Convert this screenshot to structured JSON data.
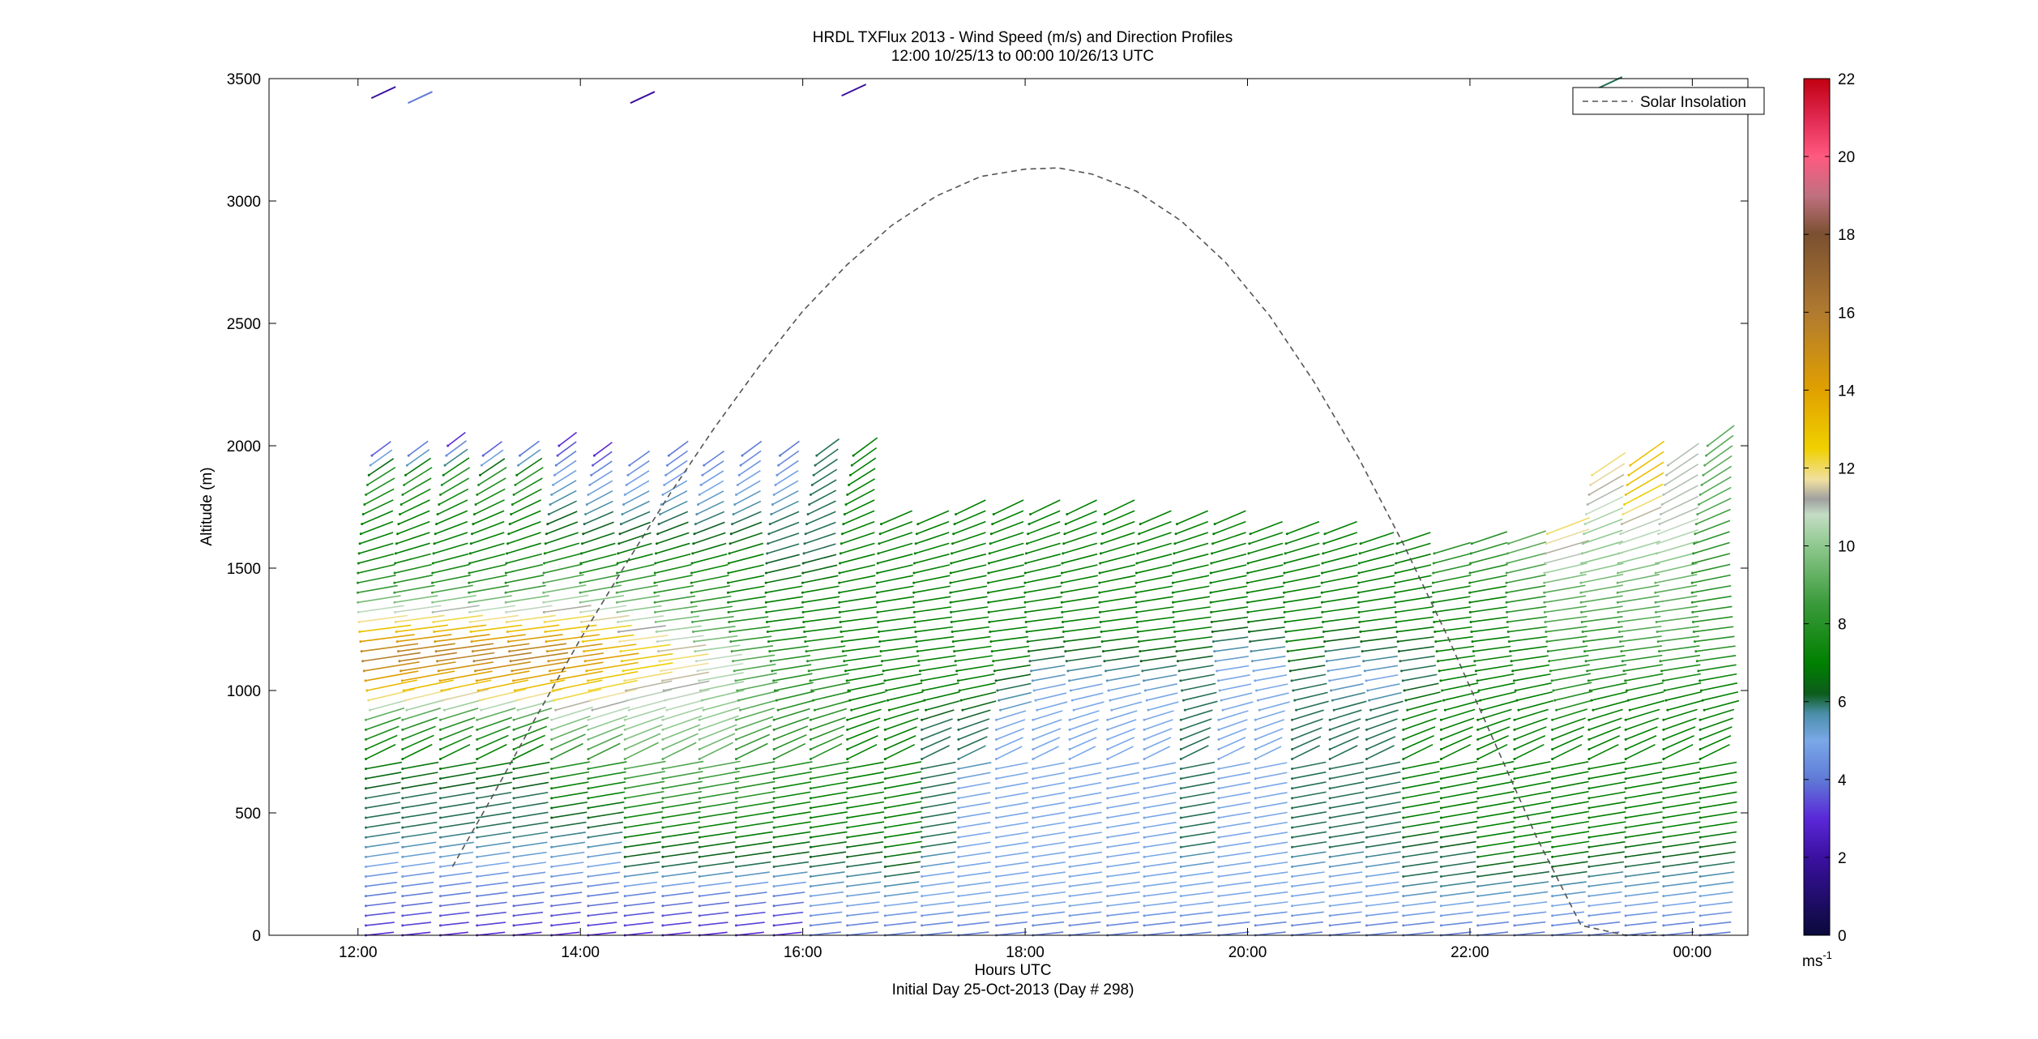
{
  "chart_data": {
    "type": "scatter",
    "title": "HRDL TXFlux 2013 - Wind Speed (m/s) and Direction Profiles",
    "subtitle": "12:00 10/25/13 to 00:00 10/26/13  UTC",
    "xlabel": "Hours UTC",
    "xlabel2": "Initial Day 25-Oct-2013 (Day # 298)",
    "ylabel": "Altitude (m)",
    "xlim": [
      11.2,
      24.5
    ],
    "ylim": [
      0,
      3500
    ],
    "x_ticks": [
      12,
      14,
      16,
      18,
      20,
      22,
      24
    ],
    "x_tick_labels": [
      "12:00",
      "14:00",
      "16:00",
      "18:00",
      "20:00",
      "22:00",
      "00:00"
    ],
    "y_ticks": [
      0,
      500,
      1000,
      1500,
      2000,
      2500,
      3000,
      3500
    ],
    "y_tick_labels": [
      "0",
      "500",
      "1000",
      "1500",
      "2000",
      "2500",
      "3000",
      "3500"
    ],
    "legend": {
      "label": "Solar Insolation",
      "placement": "top-right"
    },
    "series": [
      {
        "name": "Solar Insolation",
        "style": "dashed",
        "color": "#555555",
        "x": [
          12.85,
          13.2,
          13.6,
          14.0,
          14.4,
          14.8,
          15.2,
          15.6,
          16.0,
          16.4,
          16.8,
          17.2,
          17.6,
          18.0,
          18.3,
          18.6,
          19.0,
          19.4,
          19.8,
          20.2,
          20.6,
          21.0,
          21.4,
          21.8,
          22.2,
          22.6,
          23.0,
          23.4,
          23.75
        ],
        "y": [
          280,
          560,
          890,
          1210,
          1510,
          1800,
          2070,
          2320,
          2550,
          2740,
          2900,
          3020,
          3100,
          3130,
          3135,
          3110,
          3040,
          2920,
          2750,
          2530,
          2260,
          1950,
          1600,
          1220,
          810,
          400,
          40,
          0,
          0
        ]
      }
    ],
    "profile_times": [
      12.1,
      12.43,
      12.77,
      13.1,
      13.43,
      13.77,
      14.1,
      14.43,
      14.77,
      15.1,
      15.43,
      15.77,
      16.1,
      16.43,
      16.77,
      17.1,
      17.43,
      17.77,
      18.1,
      18.43,
      18.77,
      19.1,
      19.43,
      19.77,
      20.1,
      20.43,
      20.77,
      21.1,
      21.43,
      21.77,
      22.1,
      22.43,
      22.77,
      23.1,
      23.43,
      23.77,
      24.1
    ],
    "profile_tops": [
      1980,
      1990,
      2000,
      1980,
      1990,
      2000,
      1960,
      1950,
      1960,
      1940,
      1960,
      1960,
      1970,
      1960,
      1700,
      1700,
      1730,
      1750,
      1740,
      1730,
      1720,
      1700,
      1710,
      1690,
      1670,
      1650,
      1640,
      1610,
      1600,
      1580,
      1610,
      1620,
      1640,
      1890,
      1930,
      1940,
      2020
    ],
    "profile_speeds_ms": [
      [
        3,
        4,
        5,
        6,
        6,
        7,
        8,
        13,
        16,
        12,
        8,
        7,
        7,
        8,
        3
      ],
      [
        3,
        4,
        5,
        6,
        6,
        7,
        8,
        13,
        16,
        12,
        8,
        7,
        7,
        8,
        3
      ],
      [
        3,
        4,
        5,
        6,
        6,
        7,
        8,
        13,
        16,
        12,
        8,
        7,
        7,
        8,
        3
      ],
      [
        3,
        4,
        5,
        6,
        6,
        7,
        8,
        13,
        16,
        12,
        8,
        7,
        7,
        8,
        3
      ],
      [
        3,
        4,
        5,
        6,
        6,
        7,
        8,
        13,
        16,
        12,
        8,
        7,
        7,
        8,
        3
      ],
      [
        3,
        4,
        5,
        6,
        7,
        8,
        10,
        13,
        15,
        12,
        9,
        7,
        6,
        5,
        3
      ],
      [
        3,
        4,
        5,
        6,
        7,
        8,
        10,
        12,
        14,
        12,
        9,
        7,
        6,
        5,
        3
      ],
      [
        3,
        4,
        6,
        7,
        8,
        9,
        10,
        11,
        13,
        11,
        9,
        7,
        6,
        5,
        4
      ],
      [
        3,
        4,
        6,
        7,
        8,
        9,
        10,
        11,
        12,
        10,
        8,
        7,
        6,
        5,
        4
      ],
      [
        3,
        4,
        6,
        7,
        8,
        9,
        10,
        10,
        11,
        9,
        8,
        7,
        6,
        5,
        4
      ],
      [
        3,
        4,
        6,
        7,
        8,
        8,
        9,
        9,
        9,
        8,
        7,
        7,
        6,
        5,
        4
      ],
      [
        3,
        4,
        6,
        7,
        7,
        8,
        8,
        8,
        8,
        7,
        7,
        6,
        6,
        5,
        4
      ],
      [
        4,
        5,
        6,
        7,
        7,
        8,
        8,
        8,
        8,
        7,
        7,
        6,
        6,
        6,
        6
      ],
      [
        4,
        5,
        6,
        7,
        7,
        7,
        7,
        7,
        7,
        7,
        7,
        7,
        7,
        7,
        7
      ],
      [
        4,
        5,
        6,
        7,
        7,
        7,
        7,
        7,
        7,
        7,
        7,
        7,
        7,
        7,
        7
      ],
      [
        4,
        5,
        5,
        6,
        6,
        6,
        6,
        6,
        7,
        7,
        7,
        7,
        7,
        7,
        7
      ],
      [
        4,
        5,
        5,
        5,
        5,
        5,
        6,
        6,
        7,
        7,
        7,
        7,
        7,
        7,
        7
      ],
      [
        4,
        5,
        5,
        5,
        5,
        5,
        5,
        5,
        6,
        7,
        7,
        7,
        7,
        7,
        7
      ],
      [
        4,
        5,
        5,
        5,
        5,
        5,
        5,
        5,
        5,
        6,
        7,
        7,
        7,
        7,
        7
      ],
      [
        4,
        5,
        5,
        5,
        5,
        5,
        5,
        5,
        5,
        6,
        7,
        7,
        7,
        7,
        7
      ],
      [
        4,
        5,
        5,
        5,
        5,
        5,
        5,
        5,
        5,
        6,
        7,
        7,
        7,
        7,
        7
      ],
      [
        4,
        5,
        5,
        5,
        5,
        5,
        5,
        5,
        5,
        6,
        7,
        7,
        7,
        7,
        7
      ],
      [
        4,
        5,
        5,
        6,
        6,
        6,
        6,
        6,
        6,
        6,
        7,
        7,
        7,
        7,
        7
      ],
      [
        4,
        5,
        5,
        5,
        5,
        5,
        5,
        5,
        5,
        5,
        6,
        7,
        7,
        7,
        7
      ],
      [
        4,
        5,
        5,
        5,
        5,
        5,
        5,
        5,
        5,
        5,
        6,
        7,
        7,
        7,
        7
      ],
      [
        4,
        5,
        5,
        6,
        6,
        6,
        6,
        6,
        6,
        6,
        7,
        7,
        7,
        7,
        7
      ],
      [
        4,
        5,
        5,
        6,
        6,
        6,
        6,
        6,
        6,
        5,
        6,
        7,
        7,
        7,
        7
      ],
      [
        4,
        5,
        5,
        6,
        6,
        6,
        6,
        6,
        6,
        5,
        6,
        7,
        7,
        7,
        7
      ],
      [
        4,
        5,
        6,
        6,
        7,
        7,
        7,
        7,
        7,
        6,
        6,
        7,
        7,
        7,
        7
      ],
      [
        4,
        5,
        6,
        6,
        7,
        7,
        7,
        7,
        7,
        7,
        7,
        7,
        7,
        8,
        8
      ],
      [
        4,
        5,
        6,
        7,
        7,
        7,
        7,
        7,
        7,
        7,
        7,
        7,
        7,
        8,
        8
      ],
      [
        4,
        5,
        6,
        7,
        7,
        7,
        7,
        7,
        7,
        7,
        7,
        8,
        8,
        9,
        9
      ],
      [
        4,
        5,
        6,
        7,
        7,
        7,
        7,
        7,
        8,
        8,
        8,
        9,
        9,
        11,
        12
      ],
      [
        4,
        5,
        6,
        7,
        7,
        7,
        7,
        7,
        8,
        8,
        9,
        10,
        10,
        11,
        12
      ],
      [
        4,
        5,
        6,
        7,
        7,
        7,
        7,
        7,
        8,
        9,
        9,
        10,
        11,
        13,
        13
      ],
      [
        4,
        5,
        6,
        7,
        7,
        7,
        7,
        7,
        8,
        9,
        9,
        10,
        11,
        11,
        11
      ],
      [
        4,
        5,
        6,
        7,
        7,
        7,
        7,
        7,
        8,
        8,
        8,
        8,
        9,
        9,
        9
      ]
    ],
    "isolated_points": [
      {
        "x": 12.12,
        "y": 3440,
        "speed": 2
      },
      {
        "x": 12.45,
        "y": 3420,
        "speed": 4
      },
      {
        "x": 14.45,
        "y": 3420,
        "speed": 2
      },
      {
        "x": 16.35,
        "y": 3450,
        "speed": 2
      },
      {
        "x": 23.15,
        "y": 3480,
        "speed": 6
      }
    ],
    "colorbar": {
      "label": "ms",
      "label_exponent": "-1",
      "range": [
        0,
        22
      ],
      "ticks": [
        0,
        2,
        4,
        6,
        8,
        10,
        12,
        14,
        16,
        18,
        20,
        22
      ],
      "tick_labels": [
        "0",
        "2",
        "4",
        "6",
        "8",
        "10",
        "12",
        "14",
        "16",
        "18",
        "20",
        "22"
      ],
      "stops": [
        {
          "v": 0,
          "c": "#0a0a3a"
        },
        {
          "v": 2,
          "c": "#3a10a0"
        },
        {
          "v": 3,
          "c": "#5a28d8"
        },
        {
          "v": 4,
          "c": "#5f7ad6"
        },
        {
          "v": 5,
          "c": "#7aa8e8"
        },
        {
          "v": 5.7,
          "c": "#4a8ea8"
        },
        {
          "v": 6.2,
          "c": "#0c5c1c"
        },
        {
          "v": 7,
          "c": "#008000"
        },
        {
          "v": 8.5,
          "c": "#3a9a3a"
        },
        {
          "v": 10,
          "c": "#8ec88e"
        },
        {
          "v": 10.8,
          "c": "#c4dcc4"
        },
        {
          "v": 11.2,
          "c": "#a0a0a0"
        },
        {
          "v": 11.7,
          "c": "#f0e0a0"
        },
        {
          "v": 12.5,
          "c": "#f0d000"
        },
        {
          "v": 14,
          "c": "#e0a000"
        },
        {
          "v": 16,
          "c": "#b07a30"
        },
        {
          "v": 18,
          "c": "#7a5030"
        },
        {
          "v": 19,
          "c": "#c07080"
        },
        {
          "v": 20,
          "c": "#ff5a80"
        },
        {
          "v": 21,
          "c": "#e02850"
        },
        {
          "v": 22,
          "c": "#c00010"
        }
      ]
    }
  }
}
